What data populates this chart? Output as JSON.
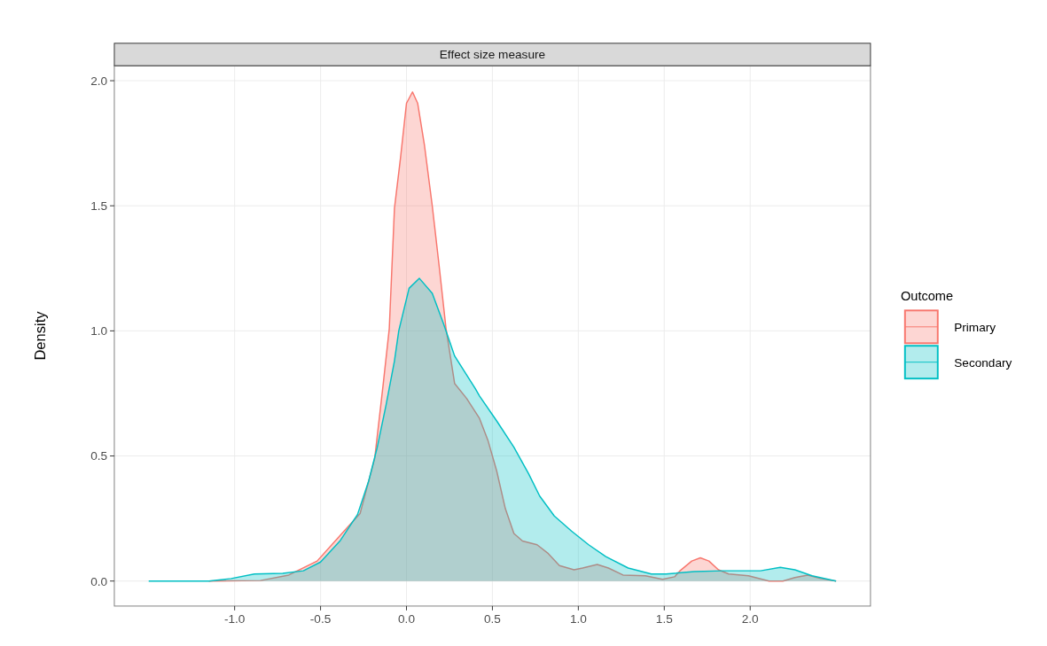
{
  "chart_data": {
    "type": "area",
    "title": "Effect size measure",
    "ylabel": "Density",
    "legend_title": "Outcome",
    "legend": "right",
    "grid": true,
    "xlim": [
      -1.7,
      2.7
    ],
    "ylim": [
      -0.1,
      2.06
    ],
    "xticks": [
      {
        "value": -1,
        "label": "-1.0"
      },
      -0.5,
      {
        "value": 0,
        "label": "0.0"
      },
      0.5,
      {
        "value": 1,
        "label": "1.0"
      },
      1.5,
      {
        "value": 2,
        "label": "2.0"
      }
    ],
    "yticks": [
      {
        "value": 0,
        "label": "0.0"
      },
      0.5,
      {
        "value": 1,
        "label": "1.0"
      },
      1.5,
      {
        "value": 2,
        "label": "2.0"
      }
    ],
    "series": [
      {
        "name": "Primary",
        "color": "#f8766d",
        "x": [
          -1.15,
          -0.85,
          -0.685,
          -0.52,
          -0.35,
          -0.27,
          -0.185,
          -0.135,
          -0.1,
          -0.07,
          -0.035,
          0,
          0.035,
          0.065,
          0.105,
          0.15,
          0.19,
          0.23,
          0.28,
          0.35,
          0.425,
          0.475,
          0.525,
          0.575,
          0.625,
          0.675,
          0.76,
          0.825,
          0.89,
          0.975,
          1.025,
          1.11,
          1.175,
          1.26,
          1.39,
          1.49,
          1.56,
          1.59,
          1.66,
          1.71,
          1.76,
          1.815,
          1.875,
          1.99,
          2.11,
          2.19,
          2.26,
          2.335,
          2.41,
          2.5
        ],
        "values": [
          0,
          0.002,
          0.024,
          0.08,
          0.21,
          0.27,
          0.49,
          0.79,
          1.01,
          1.49,
          1.69,
          1.91,
          1.955,
          1.91,
          1.74,
          1.5,
          1.26,
          1.01,
          0.79,
          0.73,
          0.65,
          0.56,
          0.44,
          0.29,
          0.19,
          0.16,
          0.145,
          0.11,
          0.062,
          0.045,
          0.052,
          0.066,
          0.052,
          0.024,
          0.021,
          0.007,
          0.017,
          0.04,
          0.08,
          0.093,
          0.08,
          0.045,
          0.028,
          0.021,
          0,
          0,
          0.014,
          0.024,
          0.01,
          0
        ]
      },
      {
        "name": "Secondary",
        "color": "#00bfc4",
        "x": [
          -1.5,
          -1.15,
          -1.02,
          -0.885,
          -0.72,
          -0.6,
          -0.5,
          -0.385,
          -0.285,
          -0.22,
          -0.17,
          -0.12,
          -0.07,
          -0.045,
          0.015,
          0.075,
          0.15,
          0.215,
          0.28,
          0.4,
          0.425,
          0.525,
          0.625,
          0.71,
          0.775,
          0.86,
          0.96,
          1.06,
          1.16,
          1.29,
          1.425,
          1.51,
          1.675,
          1.84,
          2.06,
          2.175,
          2.26,
          2.36,
          2.5
        ],
        "values": [
          0,
          0,
          0.01,
          0.028,
          0.031,
          0.041,
          0.076,
          0.162,
          0.266,
          0.4,
          0.535,
          0.7,
          0.88,
          1.0,
          1.17,
          1.21,
          1.15,
          1.03,
          0.9,
          0.77,
          0.74,
          0.64,
          0.535,
          0.43,
          0.34,
          0.26,
          0.2,
          0.145,
          0.098,
          0.052,
          0.028,
          0.028,
          0.038,
          0.041,
          0.041,
          0.055,
          0.045,
          0.021,
          0
        ]
      }
    ]
  }
}
